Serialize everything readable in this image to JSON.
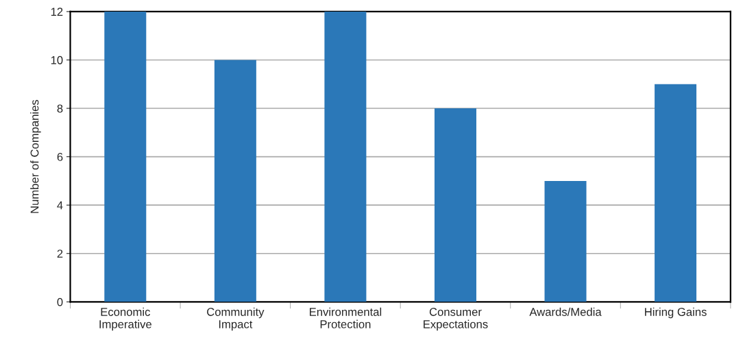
{
  "chart_data": {
    "type": "bar",
    "ylabel": "Number of Companies",
    "categories": [
      "Economic\nImperative",
      "Community\nImpact",
      "Environmental\nProtection",
      "Consumer\nExpectations",
      "Awards/Media",
      "Hiring Gains"
    ],
    "values": [
      12,
      10,
      12,
      8,
      5,
      9
    ],
    "color": "#2b78b8",
    "ylim": [
      0,
      12
    ],
    "yticks": [
      0,
      2,
      4,
      6,
      8,
      10,
      12
    ],
    "grid": "y"
  }
}
